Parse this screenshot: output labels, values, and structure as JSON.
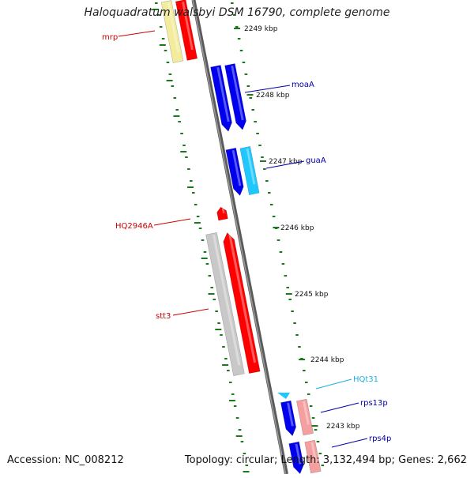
{
  "title": "Haloquadratum walsbyi DSM 16790, complete genome",
  "footer": {
    "accession": "Accession: NC_008212",
    "topology": "Topology: circular; Length: 3,132,494 bp; Genes: 2,662"
  },
  "colors": {
    "backbone": "#7a7a7a",
    "tick": "#1a7a1a",
    "red": "#ff0000",
    "blue": "#0000ee",
    "cyan": "#1ec8ff",
    "gray": "#c8c8c8",
    "pale_yellow": "#f2ec9c",
    "pink": "#f5a0a0",
    "label_red": "#cc0000",
    "label_blue": "#0000aa",
    "label_cyan": "#1ab0e0"
  },
  "scale_labels": [
    "2249 kbp",
    "2248 kbp",
    "2247 kbp",
    "2246 kbp",
    "2245 kbp",
    "2244 kbp",
    "2243 kbp"
  ],
  "gene_labels": [
    {
      "id": "mrp",
      "text": "mrp",
      "color": "label_red"
    },
    {
      "id": "moaA",
      "text": "moaA",
      "color": "label_blue"
    },
    {
      "id": "guaA",
      "text": "guaA",
      "color": "label_blue"
    },
    {
      "id": "HQ2946A",
      "text": "HQ2946A",
      "color": "label_red"
    },
    {
      "id": "stt3",
      "text": "stt3",
      "color": "label_red"
    },
    {
      "id": "HQt31",
      "text": "HQt31",
      "color": "label_cyan"
    },
    {
      "id": "rps13p",
      "text": "rps13p",
      "color": "label_blue"
    },
    {
      "id": "rps4p",
      "text": "rps4p",
      "color": "label_blue"
    }
  ]
}
